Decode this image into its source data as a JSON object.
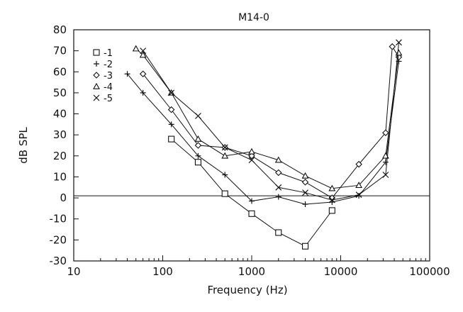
{
  "chart_data": {
    "type": "line",
    "title": "M14-0",
    "xlabel": "Frequency (Hz)",
    "ylabel": "dB SPL",
    "xscale": "log",
    "xlim": [
      10,
      100000
    ],
    "ylim": [
      -30,
      80
    ],
    "x_ticks": [
      10,
      100,
      1000,
      10000,
      100000
    ],
    "x_tick_labels": [
      "10",
      "100",
      "1000",
      "10000",
      "100000"
    ],
    "y_ticks": [
      -30,
      -20,
      -10,
      0,
      10,
      20,
      30,
      40,
      50,
      60,
      70,
      80
    ],
    "y_tick_labels": [
      "-30",
      "-20",
      "-10",
      "0",
      "10",
      "20",
      "30",
      "40",
      "50",
      "60",
      "70",
      "80"
    ],
    "reference_line_y": 1,
    "grid": false,
    "legend_position": "top-left",
    "series": [
      {
        "name": "-1",
        "marker": "square",
        "x": [
          125,
          250,
          500,
          1000,
          2000,
          4000,
          8000
        ],
        "y": [
          28,
          17,
          2,
          -7.5,
          -16.5,
          -23,
          -6
        ]
      },
      {
        "name": "-2",
        "marker": "plus",
        "x": [
          40,
          60,
          125,
          250,
          500,
          1000,
          2000,
          4000,
          8000,
          16000,
          32000,
          45000
        ],
        "y": [
          59,
          50,
          35,
          20,
          11,
          -1.5,
          0.5,
          -3,
          -2,
          1,
          17,
          65
        ]
      },
      {
        "name": "-3",
        "marker": "diamond",
        "x": [
          60,
          125,
          250,
          500,
          1000,
          2000,
          4000,
          8000,
          16000,
          32000,
          38000,
          45000
        ],
        "y": [
          59,
          42,
          25,
          24,
          20,
          12,
          7.5,
          0,
          16,
          31,
          72,
          67
        ]
      },
      {
        "name": "-4",
        "marker": "triangle",
        "x": [
          50,
          60,
          125,
          250,
          500,
          1000,
          2000,
          4000,
          8000,
          16000,
          32000,
          45000
        ],
        "y": [
          71,
          68,
          50,
          28,
          20,
          22,
          18,
          10.5,
          4.5,
          6,
          20,
          69
        ]
      },
      {
        "name": "-5",
        "marker": "x",
        "x": [
          60,
          125,
          250,
          500,
          1000,
          2000,
          4000,
          8000,
          16000,
          32000,
          45000
        ],
        "y": [
          70,
          50,
          39,
          24,
          18,
          5,
          2.5,
          -1,
          1.5,
          11,
          74
        ]
      }
    ]
  }
}
